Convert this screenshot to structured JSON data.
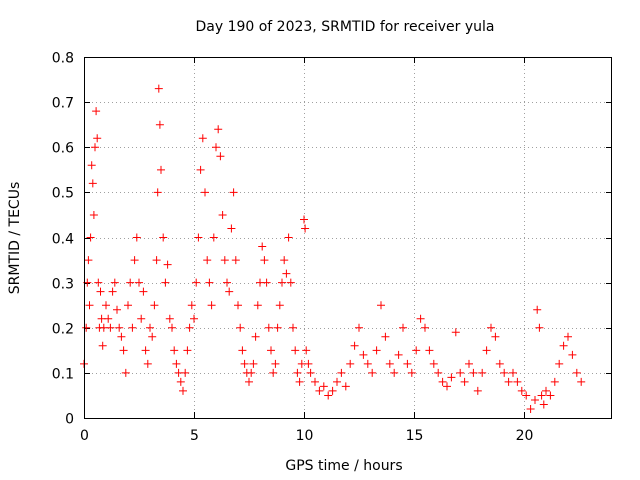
{
  "chart_data": {
    "type": "scatter",
    "title": "Day 190 of 2023, SRMTID for receiver yula",
    "xlabel": "GPS time / hours",
    "ylabel": "SRMTID / TECUs",
    "xlim": [
      0,
      24
    ],
    "ylim": [
      0,
      0.8
    ],
    "xticks": [
      0,
      5,
      10,
      15,
      20
    ],
    "yticks": [
      0,
      0.1,
      0.2,
      0.3,
      0.4,
      0.5,
      0.6,
      0.7,
      0.8
    ],
    "xtick_labels": [
      "0",
      "5",
      "10",
      "15",
      "20"
    ],
    "ytick_labels": [
      "0",
      "0.1",
      "0.2",
      "0.3",
      "0.4",
      "0.5",
      "0.6",
      "0.7",
      "0.8"
    ],
    "grid": true,
    "marker": "+",
    "color": "#ff0000",
    "series": [
      {
        "name": "SRMTID",
        "x": [
          0.0,
          0.1,
          0.15,
          0.2,
          0.25,
          0.3,
          0.35,
          0.4,
          0.45,
          0.5,
          0.55,
          0.6,
          0.65,
          0.7,
          0.75,
          0.8,
          0.85,
          0.9,
          1.0,
          1.1,
          1.2,
          1.3,
          1.4,
          1.5,
          1.6,
          1.7,
          1.8,
          1.9,
          2.0,
          2.1,
          2.2,
          2.3,
          2.4,
          2.5,
          2.6,
          2.7,
          2.8,
          2.9,
          3.0,
          3.1,
          3.2,
          3.3,
          3.35,
          3.4,
          3.45,
          3.5,
          3.6,
          3.7,
          3.8,
          3.9,
          4.0,
          4.1,
          4.2,
          4.3,
          4.4,
          4.5,
          4.6,
          4.7,
          4.8,
          4.9,
          5.0,
          5.1,
          5.2,
          5.3,
          5.4,
          5.5,
          5.6,
          5.7,
          5.8,
          5.9,
          6.0,
          6.1,
          6.2,
          6.3,
          6.4,
          6.5,
          6.6,
          6.7,
          6.8,
          6.9,
          7.0,
          7.1,
          7.2,
          7.3,
          7.4,
          7.5,
          7.6,
          7.7,
          7.8,
          7.9,
          8.0,
          8.1,
          8.2,
          8.3,
          8.4,
          8.5,
          8.6,
          8.7,
          8.8,
          8.9,
          9.0,
          9.1,
          9.2,
          9.3,
          9.4,
          9.5,
          9.6,
          9.7,
          9.8,
          9.9,
          10.0,
          10.05,
          10.1,
          10.2,
          10.3,
          10.5,
          10.7,
          10.9,
          11.1,
          11.3,
          11.5,
          11.7,
          11.9,
          12.1,
          12.3,
          12.5,
          12.7,
          12.9,
          13.1,
          13.3,
          13.5,
          13.7,
          13.9,
          14.1,
          14.3,
          14.5,
          14.7,
          14.9,
          15.1,
          15.3,
          15.5,
          15.7,
          15.9,
          16.1,
          16.3,
          16.5,
          16.7,
          16.9,
          17.1,
          17.3,
          17.5,
          17.7,
          17.9,
          18.1,
          18.3,
          18.5,
          18.7,
          18.9,
          19.1,
          19.3,
          19.5,
          19.7,
          19.9,
          20.1,
          20.3,
          20.5,
          20.6,
          20.7,
          20.8,
          20.9,
          21.0,
          21.2,
          21.4,
          21.6,
          21.8,
          22.0,
          22.2,
          22.4,
          22.6
        ],
        "y": [
          0.12,
          0.2,
          0.3,
          0.35,
          0.25,
          0.4,
          0.56,
          0.52,
          0.45,
          0.6,
          0.68,
          0.62,
          0.3,
          0.2,
          0.28,
          0.22,
          0.16,
          0.2,
          0.25,
          0.22,
          0.2,
          0.28,
          0.3,
          0.24,
          0.2,
          0.18,
          0.15,
          0.1,
          0.25,
          0.3,
          0.2,
          0.35,
          0.4,
          0.3,
          0.22,
          0.28,
          0.15,
          0.12,
          0.2,
          0.18,
          0.25,
          0.35,
          0.5,
          0.73,
          0.65,
          0.55,
          0.4,
          0.3,
          0.34,
          0.22,
          0.2,
          0.15,
          0.12,
          0.1,
          0.08,
          0.06,
          0.1,
          0.15,
          0.2,
          0.25,
          0.22,
          0.3,
          0.4,
          0.55,
          0.62,
          0.5,
          0.35,
          0.3,
          0.25,
          0.4,
          0.6,
          0.64,
          0.58,
          0.45,
          0.35,
          0.3,
          0.28,
          0.42,
          0.5,
          0.35,
          0.25,
          0.2,
          0.15,
          0.12,
          0.1,
          0.08,
          0.1,
          0.12,
          0.18,
          0.25,
          0.3,
          0.38,
          0.35,
          0.3,
          0.2,
          0.15,
          0.1,
          0.12,
          0.2,
          0.25,
          0.3,
          0.35,
          0.32,
          0.4,
          0.3,
          0.2,
          0.15,
          0.1,
          0.08,
          0.12,
          0.44,
          0.42,
          0.15,
          0.12,
          0.1,
          0.08,
          0.06,
          0.07,
          0.05,
          0.06,
          0.08,
          0.1,
          0.07,
          0.12,
          0.16,
          0.2,
          0.14,
          0.12,
          0.1,
          0.15,
          0.25,
          0.18,
          0.12,
          0.1,
          0.14,
          0.2,
          0.12,
          0.1,
          0.15,
          0.22,
          0.2,
          0.15,
          0.12,
          0.1,
          0.08,
          0.07,
          0.09,
          0.19,
          0.1,
          0.08,
          0.12,
          0.1,
          0.06,
          0.1,
          0.15,
          0.2,
          0.18,
          0.12,
          0.1,
          0.08,
          0.1,
          0.08,
          0.06,
          0.05,
          0.02,
          0.04,
          0.24,
          0.2,
          0.05,
          0.03,
          0.06,
          0.05,
          0.08,
          0.12,
          0.16,
          0.18,
          0.14,
          0.1,
          0.08
        ]
      }
    ]
  }
}
